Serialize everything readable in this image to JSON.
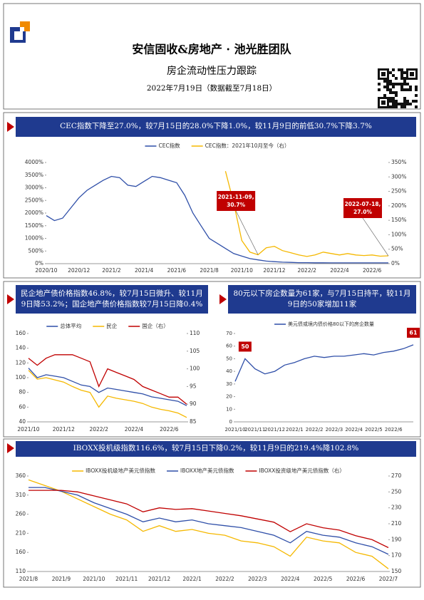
{
  "header": {
    "title": "安信固收&房地产 · 池光胜团队",
    "subtitle": "房企流动性压力跟踪",
    "date": "2022年7月19日（数据截至7月18日）"
  },
  "sections": [
    "CEC指数下降至27.0%，较7月15日的28.0%下降1.0%，较11月9日的前低30.7%下降3.7%",
    "民企地产债价格指数46.8%，较7月15日微升、较11月9日降53.2%；国企地产债价格指数较7月15日降0.4%",
    "80元以下房企数量为61家，与7月15日持平，较11月9日的50家增加11家",
    "IBOXX投机级指数116.6%，较7月15日下降0.2%，较11月9日的219.4%降102.8%"
  ],
  "chart_data": [
    {
      "type": "line",
      "legend": "top",
      "categories": [
        "2020/10",
        null,
        null,
        null,
        "2020/12",
        null,
        null,
        null,
        "2021/2",
        null,
        null,
        null,
        "2021/4",
        null,
        null,
        null,
        "2021/6",
        null,
        null,
        null,
        "2021/8",
        null,
        null,
        null,
        "2021/10",
        null,
        null,
        null,
        "2021/12",
        null,
        null,
        null,
        "2022/2",
        null,
        null,
        null,
        "2022/4",
        null,
        null,
        null,
        "2022/6",
        null,
        null
      ],
      "ylim": [
        0,
        4000
      ],
      "yticks": [
        {
          "value": 0,
          "label": "0%"
        },
        {
          "value": 500,
          "label": "500%"
        },
        {
          "value": 1000,
          "label": "1000%"
        },
        {
          "value": 1500,
          "label": "1500%"
        },
        {
          "value": 2000,
          "label": "2000%"
        },
        {
          "value": 2500,
          "label": "2500%"
        },
        {
          "value": 3000,
          "label": "3000%"
        },
        {
          "value": 3500,
          "label": "3500%"
        },
        {
          "value": 4000,
          "label": "4000%"
        }
      ],
      "y2lim": [
        0,
        350
      ],
      "y2ticks": [
        {
          "value": 0,
          "label": "0%"
        },
        {
          "value": 50,
          "label": "50%"
        },
        {
          "value": 100,
          "label": "100%"
        },
        {
          "value": 150,
          "label": "150%"
        },
        {
          "value": 200,
          "label": "200%"
        },
        {
          "value": 250,
          "label": "250%"
        },
        {
          "value": 300,
          "label": "300%"
        },
        {
          "value": 350,
          "label": "350%"
        }
      ],
      "series": [
        {
          "name": "CEC指数",
          "color": "#2f4fa8",
          "values": [
            1900,
            1700,
            1800,
            2200,
            2600,
            2900,
            3100,
            3300,
            3450,
            3400,
            3100,
            3050,
            3250,
            3450,
            3400,
            3300,
            3200,
            2700,
            2000,
            1500,
            1000,
            800,
            600,
            400,
            300,
            200,
            150,
            100,
            80,
            60,
            50,
            40,
            40,
            35,
            35,
            30,
            30,
            30,
            30,
            30,
            30,
            30,
            30
          ]
        },
        {
          "name": "CEC指数：2021年10月至今（右）",
          "color": "#f5b800",
          "axis": "y2",
          "values": [
            null,
            null,
            null,
            null,
            null,
            null,
            null,
            null,
            null,
            null,
            null,
            null,
            null,
            null,
            null,
            null,
            null,
            null,
            null,
            null,
            null,
            null,
            320,
            210,
            80,
            40,
            30.7,
            55,
            60,
            45,
            38,
            30,
            25,
            30,
            40,
            35,
            30,
            35,
            30,
            28,
            30,
            26,
            27
          ],
          "value_labels": [
            null,
            null,
            null,
            null,
            null,
            null,
            null,
            null,
            null,
            null,
            null,
            null,
            null,
            null,
            null,
            null,
            null,
            null,
            null,
            null,
            null,
            null,
            null,
            null,
            null,
            null,
            "30.7%",
            null,
            null,
            null,
            null,
            null,
            null,
            null,
            null,
            null,
            null,
            null,
            null,
            null,
            null,
            null,
            "27.0%"
          ]
        }
      ],
      "annotations": [
        "2021-11-09,",
        "2022-07-18,"
      ]
    },
    {
      "type": "line",
      "legend": "top",
      "categories": [
        "2021/10",
        null,
        null,
        null,
        "2021/12",
        null,
        null,
        null,
        "2022/2",
        null,
        null,
        null,
        "2022/4",
        null,
        null,
        null,
        "2022/6",
        null,
        null
      ],
      "ylim": [
        40,
        160
      ],
      "yticks": [
        40,
        60,
        80,
        100,
        120,
        140,
        160
      ],
      "y2lim": [
        85,
        110
      ],
      "y2ticks": [
        85,
        90,
        95,
        100,
        105,
        110
      ],
      "series": [
        {
          "name": "总体平均",
          "color": "#2f4fa8",
          "values": [
            113,
            100,
            104,
            102,
            100,
            95,
            90,
            88,
            80,
            86,
            84,
            82,
            80,
            78,
            74,
            72,
            70,
            68,
            62
          ]
        },
        {
          "name": "民企",
          "color": "#f5b800",
          "values": [
            110,
            98,
            100,
            97,
            94,
            88,
            83,
            80,
            60,
            75,
            72,
            70,
            68,
            65,
            60,
            57,
            55,
            52,
            46
          ]
        },
        {
          "name": "国企（右）",
          "color": "#c00000",
          "axis": "y2",
          "values": [
            103,
            101,
            103,
            104,
            104,
            104,
            103,
            102,
            95,
            100,
            99,
            98,
            97,
            95,
            94,
            93,
            92,
            92,
            90
          ]
        }
      ]
    },
    {
      "type": "line",
      "legend": "top",
      "categories": [
        "2021/10",
        null,
        "2021/11",
        null,
        "2021/12",
        null,
        "2022/1",
        null,
        "2022/2",
        null,
        "2022/3",
        null,
        "2022/4",
        null,
        "2022/5",
        null,
        "2022/6",
        null,
        null
      ],
      "ylim": [
        0,
        70
      ],
      "yticks": [
        0,
        10,
        20,
        30,
        40,
        50,
        60,
        70
      ],
      "series": [
        {
          "name": "美元债或境内债价格80以下的房企数量",
          "color": "#2f4fa8",
          "values": [
            32,
            50,
            42,
            38,
            40,
            45,
            47,
            50,
            52,
            51,
            52,
            52,
            53,
            54,
            53,
            55,
            56,
            58,
            61
          ]
        }
      ]
    },
    {
      "type": "line",
      "legend": "top",
      "categories": [
        "2021/8",
        null,
        "2021/9",
        null,
        "2021/10",
        null,
        "2021/11",
        null,
        "2021/12",
        null,
        "2022/1",
        null,
        "2022/2",
        null,
        "2022/3",
        null,
        "2022/4",
        null,
        "2022/5",
        null,
        "2022/6",
        null,
        "2022/7"
      ],
      "ylim": [
        110,
        360
      ],
      "yticks": [
        110,
        160,
        210,
        260,
        310,
        360
      ],
      "y2lim": [
        150,
        270
      ],
      "y2ticks": [
        150,
        170,
        190,
        210,
        230,
        250,
        270
      ],
      "series": [
        {
          "name": "IBOXX投机级地产美元债指数",
          "color": "#f5b800",
          "values": [
            350,
            335,
            320,
            300,
            280,
            260,
            245,
            215,
            230,
            215,
            220,
            210,
            205,
            190,
            185,
            175,
            150,
            200,
            190,
            185,
            160,
            150,
            117
          ]
        },
        {
          "name": "IBOXX地产美元债指数",
          "color": "#2f4fa8",
          "values": [
            330,
            330,
            320,
            310,
            290,
            275,
            260,
            240,
            250,
            240,
            245,
            235,
            230,
            225,
            215,
            205,
            185,
            215,
            205,
            200,
            185,
            175,
            155
          ]
        },
        {
          "name": "IBOXX投资级地产美元债指数（右）",
          "color": "#c00000",
          "axis": "y2",
          "values": [
            252,
            252,
            252,
            250,
            245,
            240,
            235,
            225,
            230,
            228,
            229,
            226,
            223,
            220,
            216,
            212,
            200,
            210,
            205,
            202,
            195,
            190,
            180
          ]
        }
      ]
    }
  ]
}
